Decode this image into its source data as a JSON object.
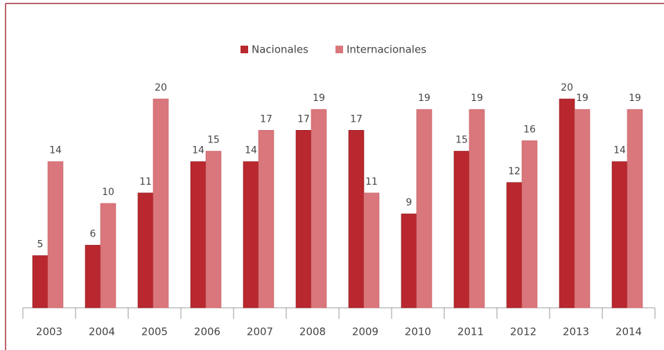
{
  "chart_data": {
    "type": "bar",
    "categories": [
      "2003",
      "2004",
      "2005",
      "2006",
      "2007",
      "2008",
      "2009",
      "2010",
      "2011",
      "2012",
      "2013",
      "2014"
    ],
    "series": [
      {
        "name": "Nacionales",
        "color": "#b8282e",
        "values": [
          5,
          6,
          11,
          14,
          14,
          17,
          17,
          9,
          15,
          12,
          20,
          14
        ]
      },
      {
        "name": "Internacionales",
        "color": "#d9777c",
        "values": [
          14,
          10,
          20,
          15,
          17,
          19,
          11,
          19,
          19,
          16,
          19,
          19
        ]
      }
    ],
    "ylim": [
      0,
      20
    ],
    "legend": "top"
  }
}
